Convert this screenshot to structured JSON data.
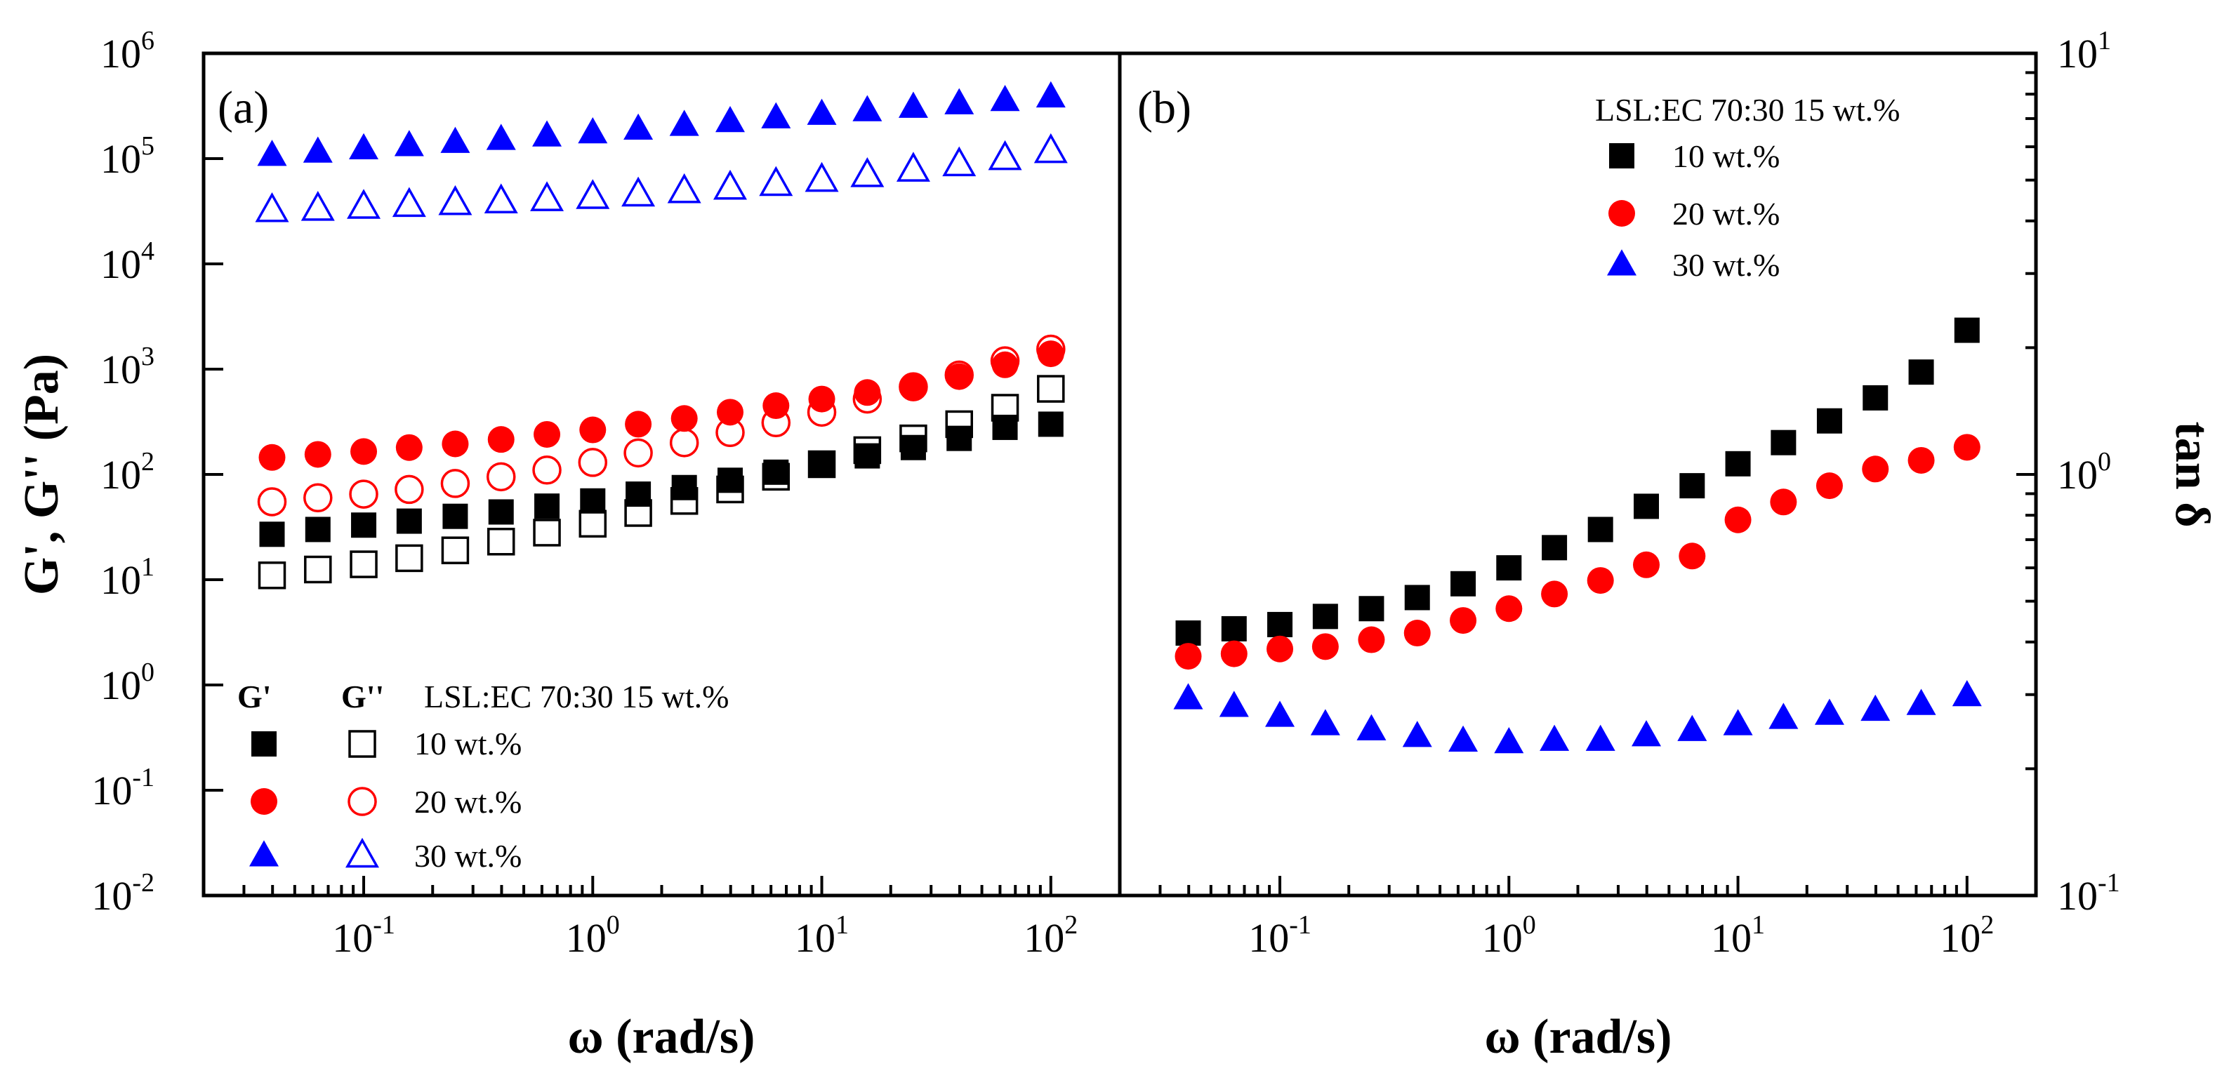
{
  "chart_data": [
    {
      "panel": "(a)",
      "type": "scatter",
      "xscale": "log",
      "yscale": "log",
      "xlim": [
        0.02,
        200
      ],
      "ylim": [
        0.01,
        1000000
      ],
      "xlabel": "ω (rad/s)",
      "ylabel": "G', G'' (Pa)",
      "x_ticks": [
        {
          "value": 0.1,
          "base": "10",
          "exp": "-1"
        },
        {
          "value": 1,
          "base": "10",
          "exp": "0"
        },
        {
          "value": 10,
          "base": "10",
          "exp": "1"
        },
        {
          "value": 100,
          "base": "10",
          "exp": "2"
        }
      ],
      "y_ticks": [
        {
          "value": 0.01,
          "base": "10",
          "exp": "-2"
        },
        {
          "value": 0.1,
          "base": "10",
          "exp": "-1"
        },
        {
          "value": 1,
          "base": "10",
          "exp": "0"
        },
        {
          "value": 10,
          "base": "10",
          "exp": "1"
        },
        {
          "value": 100,
          "base": "10",
          "exp": "2"
        },
        {
          "value": 1000,
          "base": "10",
          "exp": "3"
        },
        {
          "value": 10000,
          "base": "10",
          "exp": "4"
        },
        {
          "value": 100000,
          "base": "10",
          "exp": "5"
        },
        {
          "value": 1000000,
          "base": "10",
          "exp": "6"
        }
      ],
      "x": [
        0.0398,
        0.0631,
        0.1,
        0.158,
        0.251,
        0.398,
        0.631,
        1,
        1.58,
        2.51,
        3.98,
        6.31,
        10,
        15.8,
        25.1,
        39.8,
        63.1,
        100
      ],
      "series": [
        {
          "name": "G' 10 wt.%",
          "marker": "square",
          "filled": true,
          "color": "#000000",
          "values": [
            27,
            30,
            33,
            36,
            40,
            44,
            50,
            56,
            65,
            75,
            88,
            105,
            125,
            150,
            180,
            220,
            280,
            300
          ]
        },
        {
          "name": "G'' 10 wt.%",
          "marker": "square",
          "filled": false,
          "color": "#000000",
          "values": [
            11,
            12.5,
            14,
            16,
            19,
            23,
            28,
            34,
            43,
            56,
            72,
            95,
            125,
            170,
            220,
            300,
            430,
            650
          ]
        },
        {
          "name": "G' 20 wt.%",
          "marker": "circle",
          "filled": true,
          "color": "#ff0000",
          "values": [
            145,
            155,
            165,
            180,
            195,
            215,
            240,
            265,
            300,
            340,
            390,
            450,
            520,
            600,
            690,
            850,
            1100,
            1400
          ]
        },
        {
          "name": "G'' 20 wt.%",
          "marker": "circle",
          "filled": false,
          "color": "#ff0000",
          "values": [
            55,
            60,
            65,
            72,
            82,
            95,
            110,
            130,
            160,
            200,
            250,
            310,
            390,
            520,
            680,
            880,
            1200,
            1550
          ]
        },
        {
          "name": "G' 30 wt.%",
          "marker": "triangle",
          "filled": true,
          "color": "#0000ff",
          "values": [
            110000,
            118000,
            127000,
            136000,
            146000,
            156000,
            168000,
            180000,
            195000,
            212000,
            230000,
            250000,
            270000,
            292000,
            315000,
            340000,
            365000,
            395000
          ]
        },
        {
          "name": "G'' 30 wt.%",
          "marker": "triangle",
          "filled": false,
          "color": "#0000ff",
          "values": [
            33000,
            34000,
            35500,
            37000,
            38500,
            40000,
            42000,
            44000,
            46500,
            50000,
            54000,
            58500,
            64000,
            71000,
            80000,
            90000,
            103000,
            120000
          ]
        }
      ],
      "legend": {
        "position": "bottom-left",
        "col1_header": "G'",
        "col2_header": "G''",
        "title": "LSL:EC 70:30 15 wt.%",
        "entries": [
          "10 wt.%",
          "20 wt.%",
          "30 wt.%"
        ]
      }
    },
    {
      "panel": "(b)",
      "type": "scatter",
      "xscale": "log",
      "yscale": "log",
      "xlim": [
        0.02,
        200
      ],
      "ylim": [
        0.1,
        10
      ],
      "xlabel": "ω (rad/s)",
      "ylabel": "tan δ",
      "x_ticks": [
        {
          "value": 0.1,
          "base": "10",
          "exp": "-1"
        },
        {
          "value": 1,
          "base": "10",
          "exp": "0"
        },
        {
          "value": 10,
          "base": "10",
          "exp": "1"
        },
        {
          "value": 100,
          "base": "10",
          "exp": "2"
        }
      ],
      "y_ticks": [
        {
          "value": 0.1,
          "base": "10",
          "exp": "-1"
        },
        {
          "value": 1,
          "base": "10",
          "exp": "0"
        },
        {
          "value": 10,
          "base": "10",
          "exp": "1"
        }
      ],
      "x": [
        0.0398,
        0.0631,
        0.1,
        0.158,
        0.251,
        0.398,
        0.631,
        1,
        1.58,
        2.51,
        3.98,
        6.31,
        10,
        15.8,
        25.1,
        39.8,
        63.1,
        100
      ],
      "series": [
        {
          "name": "10 wt.%",
          "marker": "square",
          "filled": true,
          "color": "#000000",
          "values": [
            0.42,
            0.43,
            0.44,
            0.46,
            0.48,
            0.51,
            0.55,
            0.6,
            0.67,
            0.74,
            0.84,
            0.94,
            1.06,
            1.19,
            1.34,
            1.52,
            1.75,
            2.2
          ]
        },
        {
          "name": "20 wt.%",
          "marker": "circle",
          "filled": true,
          "color": "#ff0000",
          "values": [
            0.37,
            0.375,
            0.385,
            0.39,
            0.405,
            0.42,
            0.45,
            0.48,
            0.52,
            0.56,
            0.61,
            0.64,
            0.78,
            0.86,
            0.94,
            1.03,
            1.08,
            1.16
          ]
        },
        {
          "name": "30 wt.%",
          "marker": "triangle",
          "filled": true,
          "color": "#0000ff",
          "values": [
            0.295,
            0.283,
            0.268,
            0.256,
            0.249,
            0.24,
            0.234,
            0.232,
            0.235,
            0.235,
            0.241,
            0.248,
            0.256,
            0.265,
            0.271,
            0.277,
            0.286,
            0.3
          ]
        }
      ],
      "legend": {
        "position": "top-right",
        "title": "LSL:EC 70:30 15 wt.%",
        "entries": [
          "10 wt.%",
          "20 wt.%",
          "30 wt.%"
        ]
      }
    }
  ]
}
